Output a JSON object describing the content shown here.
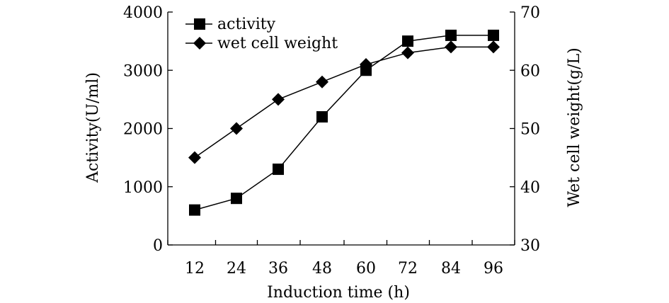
{
  "chart_data": {
    "type": "line",
    "title": "",
    "xlabel": "Induction time (h)",
    "ylabel": "Activity(U/ml)",
    "y2label": "Wet cell weight(g/L)",
    "x": [
      12,
      24,
      36,
      48,
      60,
      72,
      84,
      96
    ],
    "x_tick_labels": [
      "12",
      "24",
      "36",
      "48",
      "60",
      "72",
      "84",
      "96"
    ],
    "ylim": [
      0,
      4000
    ],
    "y_ticks": [
      0,
      1000,
      2000,
      3000,
      4000
    ],
    "y_tick_labels": [
      "0",
      "1000",
      "2000",
      "3000",
      "4000"
    ],
    "y2lim": [
      30,
      70
    ],
    "y2_ticks": [
      30,
      40,
      50,
      60,
      70
    ],
    "y2_tick_labels": [
      "30",
      "40",
      "50",
      "60",
      "70"
    ],
    "legend_position": "top-left",
    "grid": false,
    "series": [
      {
        "name": "activity",
        "axis": "left",
        "marker": "square",
        "values": [
          600,
          800,
          1300,
          2200,
          3000,
          3500,
          3600,
          3600
        ]
      },
      {
        "name": "wet cell weight",
        "axis": "right",
        "marker": "diamond",
        "values": [
          45,
          50,
          55,
          58,
          61,
          63,
          64,
          64
        ]
      }
    ]
  }
}
